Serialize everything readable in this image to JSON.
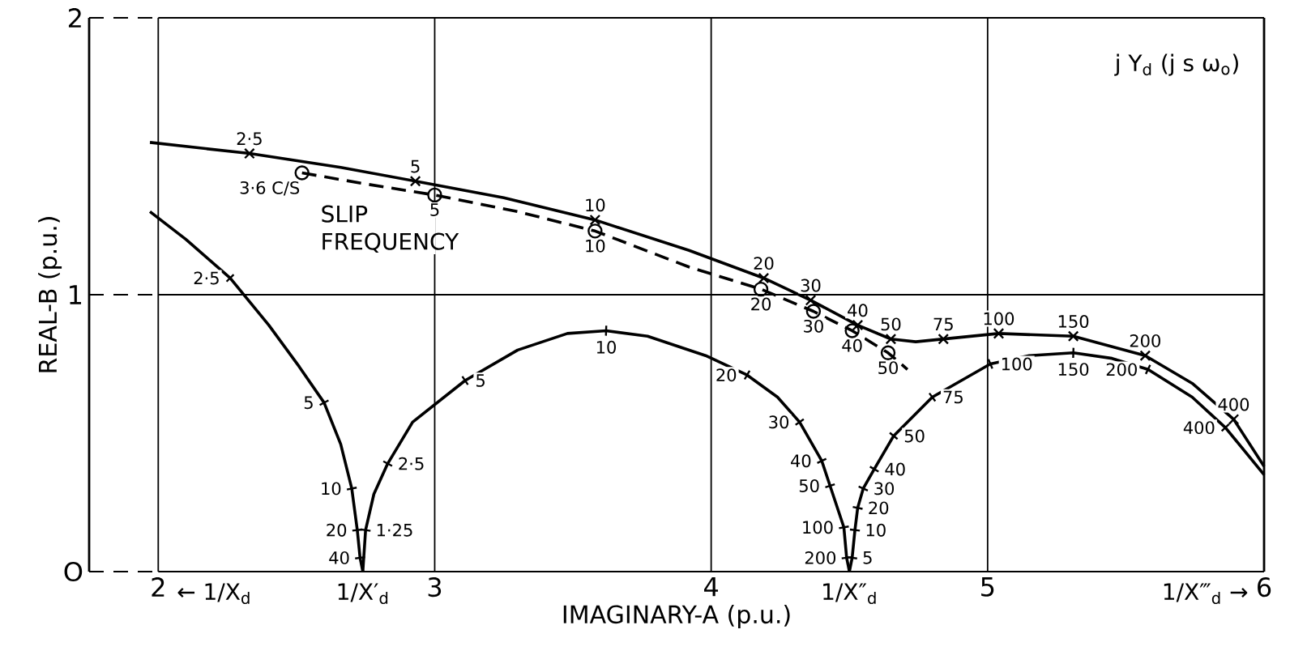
{
  "chart_data": {
    "type": "line",
    "xlabel": "IMAGINARY-A (p.u.)",
    "ylabel": "REAL-B (p.u.)",
    "xlim": [
      1.75,
      6
    ],
    "ylim": [
      0,
      2
    ],
    "xticks": [
      2,
      3,
      4,
      5,
      6
    ],
    "yticks": [
      {
        "value": 0,
        "label": "O"
      },
      1,
      2
    ],
    "grid": true,
    "annotations": [
      "j Y$_{d}$ (j s ω$_{o}$)",
      "SLIP FREQUENCY",
      "← 1/X$_{d}$",
      {
        "text": "1/X′$_{d}$",
        "x": 2.74,
        "y": 0
      },
      {
        "text": "1/X″$_{d}$",
        "x": 4.5,
        "y": 0
      },
      "1/X‴$_{d}$ →",
      {
        "text": "2·5",
        "x": 2.33,
        "y": 1.51
      },
      {
        "text": "5",
        "x": 2.93,
        "y": 1.41
      },
      {
        "text": "10",
        "x": 3.58,
        "y": 1.27
      },
      {
        "text": "20",
        "x": 4.19,
        "y": 1.06
      },
      {
        "text": "30",
        "x": 4.36,
        "y": 0.98
      },
      {
        "text": "40",
        "x": 4.53,
        "y": 0.89
      },
      {
        "text": "50",
        "x": 4.65,
        "y": 0.84
      },
      {
        "text": "75",
        "x": 4.84,
        "y": 0.84
      },
      {
        "text": "100",
        "x": 5.04,
        "y": 0.86
      },
      {
        "text": "150",
        "x": 5.31,
        "y": 0.85
      },
      {
        "text": "200",
        "x": 5.57,
        "y": 0.78
      },
      {
        "text": "400",
        "x": 5.89,
        "y": 0.55
      },
      {
        "text": "3·6 C/S",
        "x": 2.52,
        "y": 1.44
      },
      {
        "text": "5",
        "x": 3.0,
        "y": 1.36
      },
      {
        "text": "10",
        "x": 3.58,
        "y": 1.23
      },
      {
        "text": "20",
        "x": 4.18,
        "y": 1.02
      },
      {
        "text": "30",
        "x": 4.37,
        "y": 0.94
      },
      {
        "text": "40",
        "x": 4.51,
        "y": 0.87
      },
      {
        "text": "50",
        "x": 4.64,
        "y": 0.79
      },
      {
        "text": "2·5",
        "x": 2.26,
        "y": 1.06
      },
      {
        "text": "5",
        "x": 2.6,
        "y": 0.61
      },
      {
        "text": "10",
        "x": 2.7,
        "y": 0.3
      },
      {
        "text": "20",
        "x": 2.72,
        "y": 0.15
      },
      {
        "text": "40",
        "x": 2.73,
        "y": 0.05
      },
      {
        "text": "1·25",
        "x": 2.75,
        "y": 0.15
      },
      {
        "text": "2·5",
        "x": 2.83,
        "y": 0.39
      },
      {
        "text": "5",
        "x": 3.11,
        "y": 0.69
      },
      {
        "text": "10",
        "x": 3.62,
        "y": 0.87
      },
      {
        "text": "20",
        "x": 4.13,
        "y": 0.71
      },
      {
        "text": "30",
        "x": 4.32,
        "y": 0.54
      },
      {
        "text": "40",
        "x": 4.4,
        "y": 0.4
      },
      {
        "text": "50",
        "x": 4.43,
        "y": 0.31
      },
      {
        "text": "100",
        "x": 4.48,
        "y": 0.16
      },
      {
        "text": "200",
        "x": 4.49,
        "y": 0.05
      },
      {
        "text": "5",
        "x": 4.51,
        "y": 0.05
      },
      {
        "text": "10",
        "x": 4.52,
        "y": 0.15
      },
      {
        "text": "20",
        "x": 4.53,
        "y": 0.23
      },
      {
        "text": "30",
        "x": 4.55,
        "y": 0.3
      },
      {
        "text": "40",
        "x": 4.59,
        "y": 0.37
      },
      {
        "text": "50",
        "x": 4.66,
        "y": 0.49
      },
      {
        "text": "75",
        "x": 4.8,
        "y": 0.63
      },
      {
        "text": "100",
        "x": 5.01,
        "y": 0.75
      },
      {
        "text": "150",
        "x": 5.31,
        "y": 0.79
      },
      {
        "text": "200",
        "x": 5.58,
        "y": 0.73
      },
      {
        "text": "400",
        "x": 5.86,
        "y": 0.52
      }
    ],
    "series": [
      {
        "color": "#000000",
        "marker": "cross",
        "line_style": "solid",
        "x": [
          1.97,
          2.33,
          2.66,
          2.93,
          3.25,
          3.58,
          3.92,
          4.19,
          4.36,
          4.53,
          4.65,
          4.74,
          4.84,
          5.04,
          5.31,
          5.57,
          5.74,
          5.89,
          6.0
        ],
        "values": [
          1.55,
          1.51,
          1.46,
          1.41,
          1.35,
          1.27,
          1.16,
          1.06,
          0.98,
          0.89,
          0.84,
          0.83,
          0.84,
          0.86,
          0.85,
          0.78,
          0.68,
          0.55,
          0.38
        ]
      },
      {
        "color": "#000000",
        "marker": "circle",
        "line_style": "dashed",
        "x": [
          2.52,
          2.75,
          3.0,
          3.3,
          3.58,
          3.92,
          4.18,
          4.37,
          4.51,
          4.64,
          4.71
        ],
        "values": [
          1.44,
          1.4,
          1.36,
          1.3,
          1.23,
          1.1,
          1.02,
          0.94,
          0.87,
          0.79,
          0.73
        ]
      },
      {
        "color": "#000000",
        "line_style": "solid",
        "x": [
          1.97,
          2.1,
          2.26,
          2.4,
          2.51,
          2.6,
          2.66,
          2.7,
          2.72,
          2.73,
          2.74
        ],
        "values": [
          1.3,
          1.2,
          1.06,
          0.89,
          0.74,
          0.61,
          0.46,
          0.3,
          0.15,
          0.05,
          0
        ]
      },
      {
        "color": "#000000",
        "line_style": "solid",
        "x": [
          2.74,
          2.75,
          2.78,
          2.83,
          2.92,
          3.11,
          3.3,
          3.48,
          3.62,
          3.77,
          3.98,
          4.13,
          4.24,
          4.32,
          4.4,
          4.43,
          4.46,
          4.48,
          4.49,
          4.5
        ],
        "values": [
          0,
          0.15,
          0.28,
          0.39,
          0.54,
          0.69,
          0.8,
          0.86,
          0.87,
          0.85,
          0.78,
          0.71,
          0.63,
          0.54,
          0.4,
          0.31,
          0.22,
          0.16,
          0.05,
          0
        ]
      },
      {
        "color": "#000000",
        "line_style": "solid",
        "x": [
          4.5,
          4.51,
          4.52,
          4.53,
          4.55,
          4.59,
          4.66,
          4.8,
          5.01,
          5.15,
          5.31,
          5.45,
          5.58,
          5.74,
          5.86,
          6.0
        ],
        "values": [
          0,
          0.05,
          0.15,
          0.23,
          0.3,
          0.37,
          0.49,
          0.63,
          0.75,
          0.78,
          0.79,
          0.77,
          0.73,
          0.63,
          0.52,
          0.35
        ]
      }
    ]
  }
}
